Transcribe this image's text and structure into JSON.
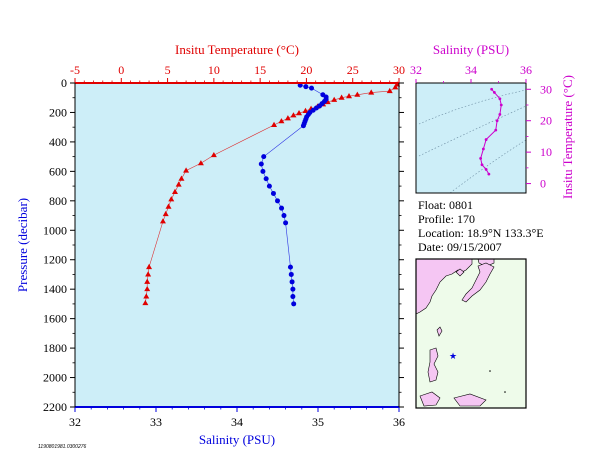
{
  "colors": {
    "temperature": "#e00000",
    "salinity": "#0000dd",
    "inset_axis": "#cc00cc",
    "plot_bg": "#cdeef8",
    "land": "#f5c6f3",
    "ocean": "#eefbea"
  },
  "chart_data": [
    {
      "type": "scatter",
      "x_top_label": "Insitu Temperature (°C)",
      "x_top_ticks": [
        "-5",
        "0",
        "5",
        "10",
        "15",
        "20",
        "25",
        "30"
      ],
      "x_top_range": [
        -5,
        30
      ],
      "x_bottom_label": "Salinity (PSU)",
      "x_bottom_ticks": [
        "32",
        "33",
        "34",
        "35",
        "36"
      ],
      "x_bottom_range": [
        32,
        36
      ],
      "ylabel": "Pressure (decibar)",
      "y_ticks": [
        "0",
        "200",
        "400",
        "600",
        "800",
        "1000",
        "1200",
        "1400",
        "1600",
        "1800",
        "2000",
        "2200"
      ],
      "y_range": [
        0,
        2200
      ],
      "y_inverted": true,
      "grid": false,
      "series": [
        {
          "marker": "triangle",
          "color": "#e00000",
          "points": [
            [
              29.8,
              10
            ],
            [
              29.6,
              30
            ],
            [
              29.0,
              55
            ],
            [
              27.0,
              65
            ],
            [
              25.5,
              80
            ],
            [
              24.6,
              90
            ],
            [
              23.8,
              100
            ],
            [
              23.0,
              115
            ],
            [
              22.3,
              130
            ],
            [
              21.8,
              145
            ],
            [
              21.2,
              160
            ],
            [
              20.5,
              175
            ],
            [
              19.9,
              190
            ],
            [
              19.2,
              205
            ],
            [
              18.6,
              220
            ],
            [
              18.0,
              240
            ],
            [
              17.3,
              260
            ],
            [
              16.5,
              285
            ],
            [
              10.0,
              490
            ],
            [
              8.6,
              545
            ],
            [
              7.0,
              595
            ],
            [
              6.5,
              650
            ],
            [
              6.2,
              690
            ],
            [
              5.8,
              740
            ],
            [
              5.4,
              790
            ],
            [
              5.1,
              840
            ],
            [
              4.8,
              890
            ],
            [
              4.5,
              940
            ],
            [
              3.0,
              1250
            ],
            [
              2.9,
              1300
            ],
            [
              2.8,
              1350
            ],
            [
              2.8,
              1400
            ],
            [
              2.7,
              1450
            ],
            [
              2.6,
              1495
            ]
          ]
        },
        {
          "marker": "circle",
          "color": "#0000dd",
          "points": [
            [
              34.78,
              15
            ],
            [
              34.85,
              25
            ],
            [
              34.92,
              35
            ],
            [
              35.06,
              80
            ],
            [
              35.1,
              95
            ],
            [
              35.1,
              110
            ],
            [
              35.08,
              125
            ],
            [
              35.05,
              140
            ],
            [
              35.02,
              155
            ],
            [
              34.98,
              170
            ],
            [
              34.94,
              185
            ],
            [
              34.9,
              200
            ],
            [
              34.88,
              215
            ],
            [
              34.86,
              230
            ],
            [
              34.85,
              245
            ],
            [
              34.84,
              260
            ],
            [
              34.83,
              275
            ],
            [
              34.82,
              290
            ],
            [
              34.33,
              500
            ],
            [
              34.3,
              550
            ],
            [
              34.32,
              600
            ],
            [
              34.36,
              650
            ],
            [
              34.4,
              700
            ],
            [
              34.45,
              750
            ],
            [
              34.5,
              800
            ],
            [
              34.55,
              850
            ],
            [
              34.58,
              900
            ],
            [
              34.6,
              950
            ],
            [
              34.66,
              1250
            ],
            [
              34.67,
              1300
            ],
            [
              34.68,
              1350
            ],
            [
              34.69,
              1400
            ],
            [
              34.69,
              1450
            ],
            [
              34.7,
              1500
            ]
          ]
        }
      ]
    },
    {
      "type": "scatter",
      "x_label": "Salinity (PSU)",
      "x_ticks": [
        "32",
        "34",
        "36"
      ],
      "x_range": [
        32,
        36
      ],
      "y_label": "Insitu Temperature (°C)",
      "y_ticks": [
        "0",
        "10",
        "20",
        "30"
      ],
      "y_range": [
        -3,
        32
      ],
      "series": [
        {
          "color": "#cc00cc",
          "points": [
            [
              34.75,
              30
            ],
            [
              34.85,
              29
            ],
            [
              35.05,
              27
            ],
            [
              35.1,
              25
            ],
            [
              35.05,
              22
            ],
            [
              34.95,
              20
            ],
            [
              34.9,
              17
            ],
            [
              34.55,
              14
            ],
            [
              34.45,
              11
            ],
            [
              34.35,
              8
            ],
            [
              34.4,
              6
            ],
            [
              34.55,
              4.5
            ],
            [
              34.65,
              3
            ]
          ]
        }
      ]
    }
  ],
  "info": {
    "float": "Float:  0801",
    "profile": "Profile:  170",
    "location": "Location:  18.9°N  133.3°E",
    "date": "Date:  09/15/2007"
  },
  "map": {
    "marker": "star",
    "float_lat": 18.9,
    "float_lon": 133.3
  },
  "footer_id": "1190801981.0300276"
}
